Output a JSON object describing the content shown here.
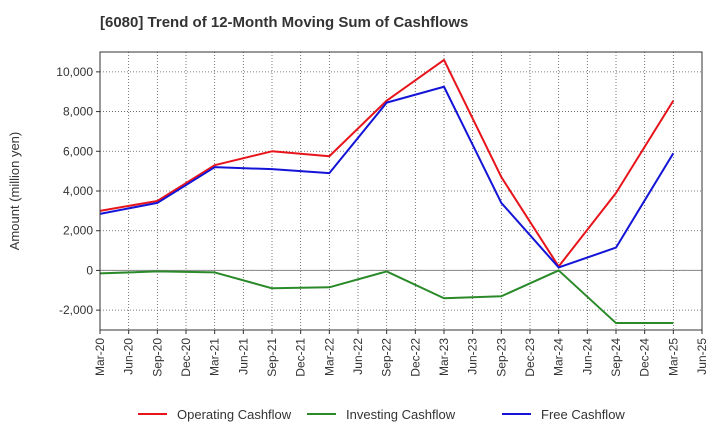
{
  "chart_data": {
    "type": "line",
    "title": "[6080]  Trend of 12-Month Moving Sum of Cashflows",
    "ylabel": "Amount (million yen)",
    "xlabel": "",
    "ylim": [
      -3000,
      11000
    ],
    "yticks": [
      -2000,
      0,
      2000,
      4000,
      6000,
      8000,
      10000
    ],
    "ytick_labels": [
      "-2,000",
      "0",
      "2,000",
      "4,000",
      "6,000",
      "8,000",
      "10,000"
    ],
    "x": [
      "Mar-20",
      "Jun-20",
      "Sep-20",
      "Dec-20",
      "Mar-21",
      "Jun-21",
      "Sep-21",
      "Dec-21",
      "Mar-22",
      "Jun-22",
      "Sep-22",
      "Dec-22",
      "Mar-23",
      "Jun-23",
      "Sep-23",
      "Dec-23",
      "Mar-24",
      "Jun-24",
      "Sep-24",
      "Dec-24",
      "Mar-25",
      "Jun-25"
    ],
    "grid": true,
    "legend_position": "bottom",
    "series": [
      {
        "name": "Operating Cashflow",
        "color": "#e8141b",
        "points": [
          {
            "x": "Mar-20",
            "y": 3000
          },
          {
            "x": "Sep-20",
            "y": 3500
          },
          {
            "x": "Mar-21",
            "y": 5300
          },
          {
            "x": "Sep-21",
            "y": 6000
          },
          {
            "x": "Mar-22",
            "y": 5750
          },
          {
            "x": "Sep-22",
            "y": 8550
          },
          {
            "x": "Mar-23",
            "y": 10600
          },
          {
            "x": "Sep-23",
            "y": 4700
          },
          {
            "x": "Mar-24",
            "y": 200
          },
          {
            "x": "Sep-24",
            "y": 3900
          },
          {
            "x": "Mar-25",
            "y": 8550
          }
        ]
      },
      {
        "name": "Investing Cashflow",
        "color": "#2a8a2a",
        "points": [
          {
            "x": "Mar-20",
            "y": -150
          },
          {
            "x": "Sep-20",
            "y": -50
          },
          {
            "x": "Mar-21",
            "y": -100
          },
          {
            "x": "Sep-21",
            "y": -900
          },
          {
            "x": "Mar-22",
            "y": -850
          },
          {
            "x": "Sep-22",
            "y": -50
          },
          {
            "x": "Mar-23",
            "y": -1400
          },
          {
            "x": "Sep-23",
            "y": -1300
          },
          {
            "x": "Mar-24",
            "y": 0
          },
          {
            "x": "Sep-24",
            "y": -2650
          },
          {
            "x": "Mar-25",
            "y": -2650
          }
        ]
      },
      {
        "name": "Free Cashflow",
        "color": "#1414d8",
        "points": [
          {
            "x": "Mar-20",
            "y": 2850
          },
          {
            "x": "Sep-20",
            "y": 3400
          },
          {
            "x": "Mar-21",
            "y": 5200
          },
          {
            "x": "Sep-21",
            "y": 5100
          },
          {
            "x": "Mar-22",
            "y": 4900
          },
          {
            "x": "Sep-22",
            "y": 8450
          },
          {
            "x": "Mar-23",
            "y": 9250
          },
          {
            "x": "Sep-23",
            "y": 3400
          },
          {
            "x": "Mar-24",
            "y": 150
          },
          {
            "x": "Sep-24",
            "y": 1150
          },
          {
            "x": "Mar-25",
            "y": 5900
          }
        ]
      }
    ]
  }
}
